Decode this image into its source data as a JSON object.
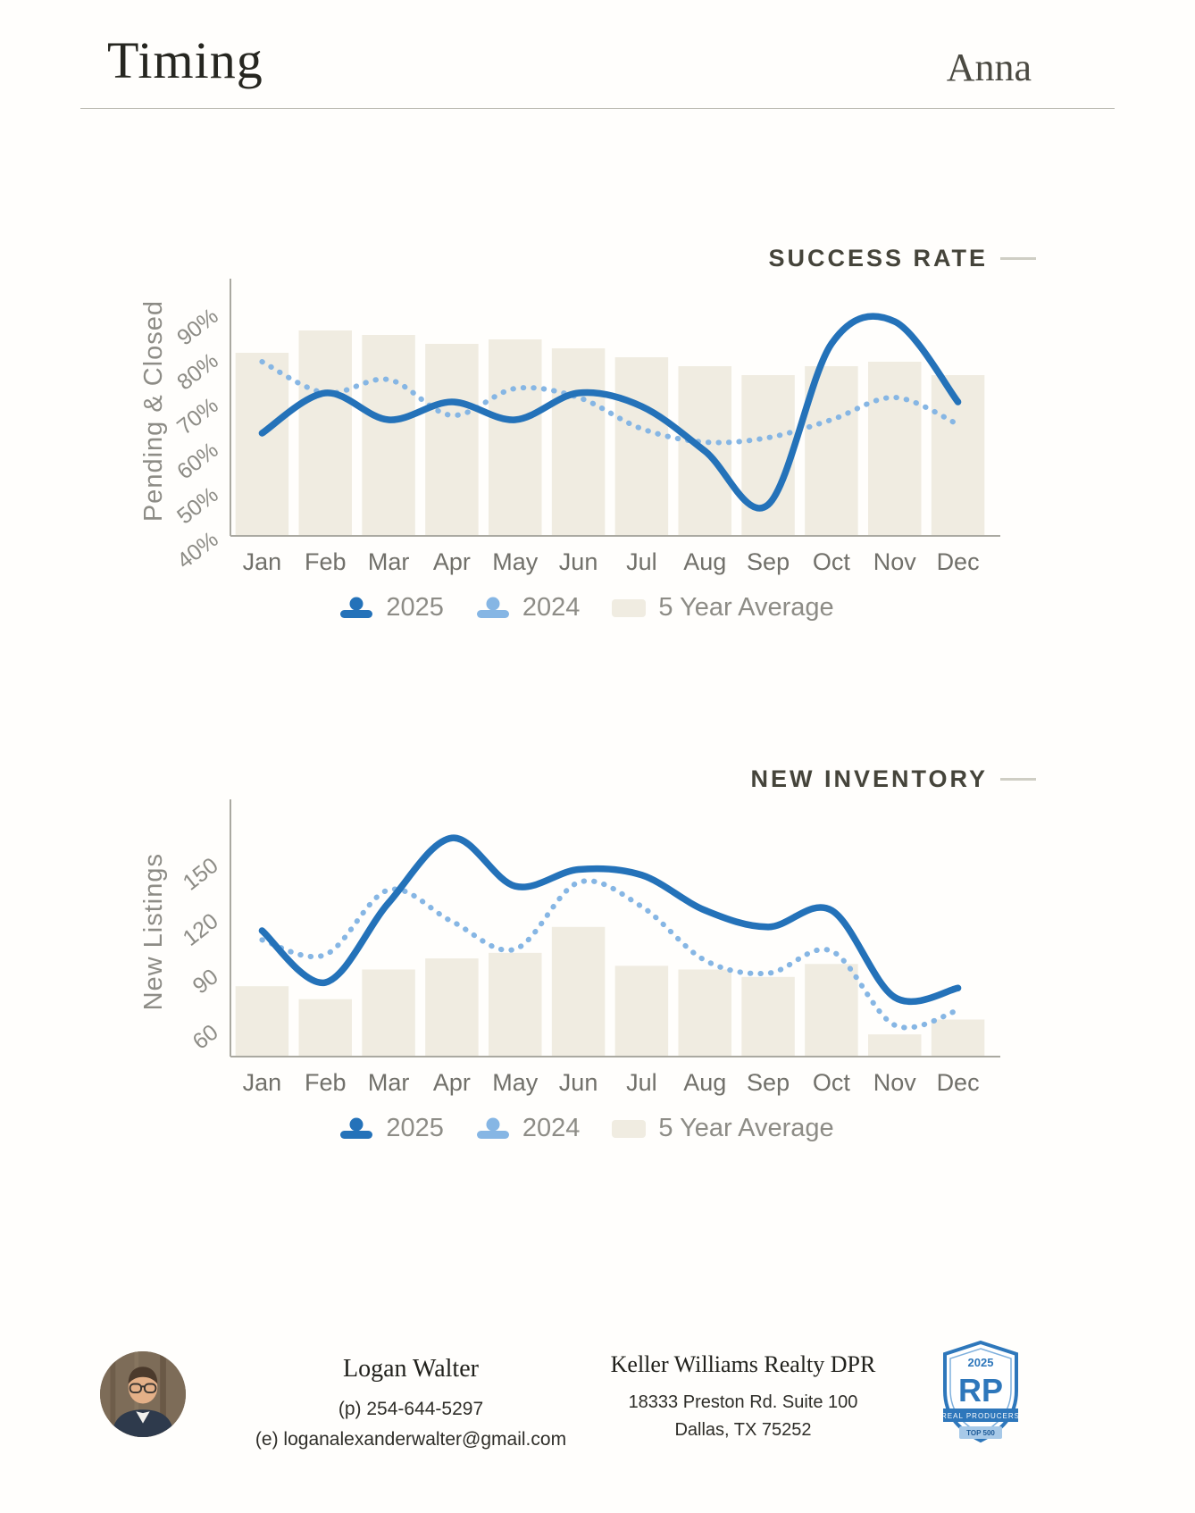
{
  "page": {
    "title": "Timing",
    "city": "Anna"
  },
  "colors": {
    "accent_2025": "#2472b9",
    "accent_2024": "#86b6e4",
    "bar": "#f0ece1",
    "axis": "#aaa9a1",
    "text_gray": "#8d8c86",
    "month_gray": "#71706a"
  },
  "charts": [
    {
      "title": "SUCCESS RATE",
      "ylabel": "Pending & Closed",
      "type": "bar+line",
      "categories": [
        "Jan",
        "Feb",
        "Mar",
        "Apr",
        "May",
        "Jun",
        "Jul",
        "Aug",
        "Sep",
        "Oct",
        "Nov",
        "Dec"
      ],
      "yticks": [
        40,
        50,
        60,
        70,
        80,
        90
      ],
      "ytick_suffix": "%",
      "ymin": 40,
      "ymax": 96,
      "series": [
        {
          "name": "2025",
          "type": "line",
          "style": "solid",
          "color": "#2472b9",
          "values": [
            63,
            72,
            66,
            70,
            66,
            72,
            69,
            59,
            47,
            83,
            88,
            70
          ]
        },
        {
          "name": "2024",
          "type": "line",
          "style": "dotted",
          "color": "#86b6e4",
          "values": [
            79,
            72,
            75,
            67,
            73,
            71,
            64,
            61,
            62,
            66,
            71,
            65
          ]
        },
        {
          "name": "5 Year Average",
          "type": "bar",
          "color": "#f0ece1",
          "values": [
            81,
            86,
            85,
            83,
            84,
            82,
            80,
            78,
            76,
            78,
            79,
            76
          ]
        }
      ],
      "legend": [
        "2025",
        "2024",
        "5 Year Average"
      ]
    },
    {
      "title": "NEW INVENTORY",
      "ylabel": "New Listings",
      "type": "bar+line",
      "categories": [
        "Jan",
        "Feb",
        "Mar",
        "Apr",
        "May",
        "Jun",
        "Jul",
        "Aug",
        "Sep",
        "Oct",
        "Nov",
        "Dec"
      ],
      "yticks": [
        60,
        90,
        120,
        150
      ],
      "ytick_suffix": "",
      "ymin": 45,
      "ymax": 180,
      "series": [
        {
          "name": "2025",
          "type": "line",
          "style": "solid",
          "color": "#2472b9",
          "values": [
            113,
            85,
            128,
            163,
            137,
            146,
            143,
            124,
            115,
            124,
            77,
            82
          ]
        },
        {
          "name": "2024",
          "type": "line",
          "style": "dotted",
          "color": "#86b6e4",
          "values": [
            108,
            100,
            135,
            118,
            103,
            139,
            126,
            97,
            90,
            102,
            62,
            70
          ]
        },
        {
          "name": "5 Year Average",
          "type": "bar",
          "color": "#f0ece1",
          "values": [
            83,
            76,
            92,
            98,
            101,
            115,
            94,
            92,
            88,
            95,
            57,
            65
          ]
        }
      ],
      "legend": [
        "2025",
        "2024",
        "5 Year Average"
      ]
    }
  ],
  "footer": {
    "agent_name": "Logan Walter",
    "phone": "(p) 254-644-5297",
    "email": "(e) loganalexanderwalter@gmail.com",
    "office": "Keller Williams Realty DPR",
    "address1": "18333 Preston Rd. Suite 100",
    "address2": "Dallas, TX 75252",
    "badge": {
      "year": "2025",
      "letters": "RP",
      "label": "REAL PRODUCERS",
      "rank": "TOP 500"
    }
  }
}
